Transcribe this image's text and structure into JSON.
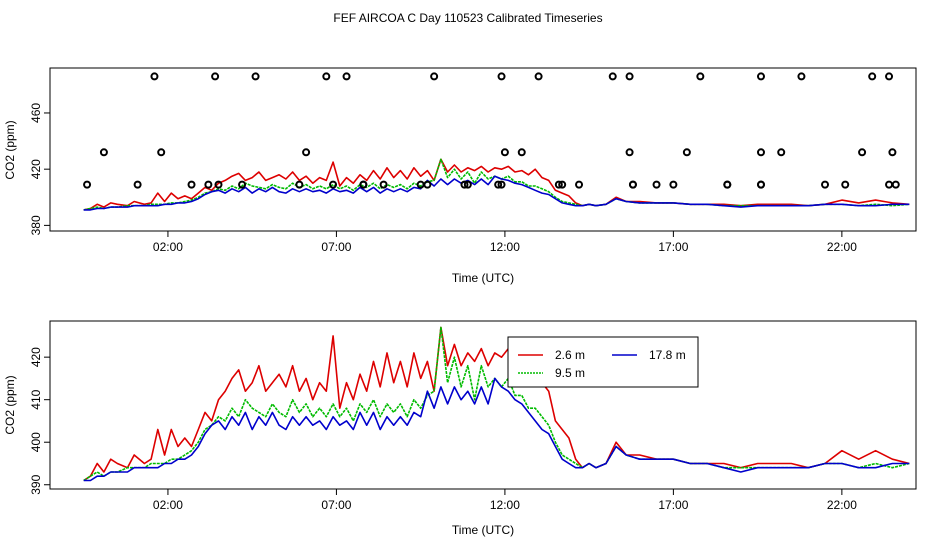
{
  "chart_data": [
    {
      "type": "line",
      "title": "FEF AIRCOA C  Day 110523  Calibrated Timeseries",
      "xlabel": "Time (UTC)",
      "ylabel": "CO2 (ppm)",
      "xlim": [
        -1.5,
        24.2
      ],
      "ylim": [
        376,
        492
      ],
      "xticks": [
        2,
        7,
        12,
        17,
        22
      ],
      "xtick_labels": [
        "02:00",
        "07:00",
        "12:00",
        "17:00",
        "22:00"
      ],
      "yticks": [
        380,
        420,
        460
      ],
      "ytick_labels": [
        "380",
        "420",
        "460"
      ],
      "outliers": {
        "name": "flagged points",
        "x": [
          1.6,
          3.4,
          4.6,
          6.7,
          7.3,
          9.9,
          11.9,
          13.0,
          15.2,
          15.7,
          17.8,
          19.6,
          20.8,
          22.9,
          23.4,
          0.1,
          1.8,
          6.1,
          12.0,
          12.5,
          15.7,
          17.4,
          19.6,
          20.2,
          22.6,
          23.5,
          -0.4,
          3.5,
          5.9,
          7.8,
          9.7,
          10.9,
          11.8,
          13.7,
          14.2,
          15.8,
          17.0,
          18.6,
          19.6,
          22.1,
          23.4,
          1.1,
          2.7,
          3.2,
          4.2,
          6.9,
          7.8,
          8.4,
          9.5,
          10.8,
          11.9,
          13.6,
          15.8,
          16.5,
          18.6,
          19.6,
          21.5,
          23.6
        ],
        "y": [
          486,
          486,
          486,
          486,
          486,
          486,
          486,
          486,
          486,
          486,
          486,
          486,
          486,
          486,
          486,
          432,
          432,
          432,
          432,
          432,
          432,
          432,
          432,
          432,
          432,
          432,
          409,
          409,
          409,
          409,
          409,
          409,
          409,
          409,
          409,
          409,
          409,
          409,
          409,
          409,
          409,
          409,
          409,
          409,
          409,
          409,
          409,
          409,
          409,
          409,
          409,
          409,
          409,
          409,
          409,
          409,
          409,
          409
        ]
      },
      "series": [
        {
          "name": "2.6 m",
          "color": "#dd0000"
        },
        {
          "name": "9.5 m",
          "color": "#00bb00"
        },
        {
          "name": "17.8 m",
          "color": "#0000cc"
        }
      ]
    },
    {
      "type": "line",
      "title": "",
      "xlabel": "Time (UTC)",
      "ylabel": "CO2 (ppm)",
      "xlim": [
        -1.5,
        24.2
      ],
      "ylim": [
        389,
        428.5
      ],
      "xticks": [
        2,
        7,
        12,
        17,
        22
      ],
      "xtick_labels": [
        "02:00",
        "07:00",
        "12:00",
        "17:00",
        "22:00"
      ],
      "yticks": [
        390,
        400,
        410,
        420
      ],
      "ytick_labels": [
        "390",
        "400",
        "410",
        "420"
      ],
      "legend_position": "top-center",
      "series": [
        {
          "name": "2.6 m",
          "color": "#dd0000",
          "x": [
            -0.5,
            -0.3,
            -0.1,
            0.1,
            0.3,
            0.5,
            0.8,
            1.0,
            1.3,
            1.5,
            1.7,
            1.9,
            2.1,
            2.3,
            2.5,
            2.7,
            2.9,
            3.1,
            3.3,
            3.5,
            3.7,
            3.9,
            4.1,
            4.3,
            4.5,
            4.7,
            4.9,
            5.1,
            5.3,
            5.5,
            5.7,
            5.9,
            6.1,
            6.3,
            6.5,
            6.7,
            6.9,
            7.1,
            7.3,
            7.5,
            7.7,
            7.9,
            8.1,
            8.3,
            8.5,
            8.7,
            8.9,
            9.1,
            9.3,
            9.5,
            9.7,
            9.9,
            10.1,
            10.3,
            10.5,
            10.7,
            10.9,
            11.1,
            11.3,
            11.5,
            11.7,
            11.9,
            12.1,
            12.3,
            12.5,
            12.7,
            12.9,
            13.1,
            13.3,
            13.5,
            13.7,
            13.9,
            14.1,
            14.3,
            14.5,
            14.7,
            15.0,
            15.3,
            15.6,
            16.0,
            16.5,
            17.0,
            17.5,
            18.0,
            18.5,
            19.0,
            19.5,
            20.0,
            20.5,
            21.0,
            21.5,
            22.0,
            22.5,
            23.0,
            23.5,
            24.0
          ],
          "y": [
            391,
            392,
            395,
            393,
            396,
            395,
            394,
            397,
            395,
            396,
            403,
            397,
            403,
            399,
            401,
            399,
            403,
            407,
            405,
            410,
            412,
            415,
            417,
            412,
            414,
            418,
            412,
            414,
            416,
            413,
            418,
            412,
            415,
            410,
            414,
            412,
            425,
            408,
            414,
            410,
            416,
            412,
            419,
            413,
            421,
            414,
            419,
            413,
            421,
            415,
            419,
            412,
            427,
            418,
            423,
            418,
            421,
            419,
            422,
            418,
            421,
            420,
            422,
            418,
            419,
            416,
            420,
            414,
            412,
            405,
            403,
            401,
            396,
            394,
            395,
            394,
            395,
            400,
            397,
            397,
            396,
            396,
            395,
            395,
            395,
            394,
            395,
            395,
            395,
            394,
            395,
            398,
            396,
            398,
            396,
            395
          ]
        },
        {
          "name": "9.5 m",
          "color": "#00bb00",
          "x": [
            -0.5,
            -0.3,
            -0.1,
            0.1,
            0.3,
            0.5,
            0.8,
            1.0,
            1.3,
            1.5,
            1.7,
            1.9,
            2.1,
            2.3,
            2.5,
            2.7,
            2.9,
            3.1,
            3.3,
            3.5,
            3.7,
            3.9,
            4.1,
            4.3,
            4.5,
            4.7,
            4.9,
            5.1,
            5.3,
            5.5,
            5.7,
            5.9,
            6.1,
            6.3,
            6.5,
            6.7,
            6.9,
            7.1,
            7.3,
            7.5,
            7.7,
            7.9,
            8.1,
            8.3,
            8.5,
            8.7,
            8.9,
            9.1,
            9.3,
            9.5,
            9.7,
            9.9,
            10.1,
            10.3,
            10.5,
            10.7,
            10.9,
            11.1,
            11.3,
            11.5,
            11.7,
            11.9,
            12.1,
            12.3,
            12.5,
            12.7,
            12.9,
            13.1,
            13.3,
            13.5,
            13.7,
            13.9,
            14.1,
            14.3,
            14.5,
            14.7,
            15.0,
            15.3,
            15.6,
            16.0,
            16.5,
            17.0,
            17.5,
            18.0,
            18.5,
            19.0,
            19.5,
            20.0,
            20.5,
            21.0,
            21.5,
            22.0,
            22.5,
            23.0,
            23.5,
            24.0
          ],
          "y": [
            391,
            392,
            393,
            392,
            393,
            393,
            394,
            394,
            394,
            395,
            395,
            395,
            396,
            396,
            397,
            398,
            400,
            403,
            404,
            406,
            405,
            408,
            406,
            410,
            408,
            407,
            406,
            409,
            407,
            406,
            410,
            407,
            409,
            406,
            408,
            406,
            409,
            406,
            408,
            405,
            409,
            407,
            410,
            406,
            409,
            407,
            409,
            406,
            410,
            408,
            411,
            412,
            427,
            414,
            420,
            413,
            418,
            410,
            418,
            413,
            415,
            413,
            415,
            411,
            411,
            408,
            408,
            406,
            404,
            400,
            397,
            396,
            395,
            394,
            395,
            394,
            395,
            399,
            397,
            396,
            396,
            396,
            395,
            395,
            394,
            394,
            394,
            394,
            394,
            394,
            395,
            395,
            394,
            395,
            394,
            395
          ]
        },
        {
          "name": "17.8 m",
          "color": "#0000cc",
          "x": [
            -0.5,
            -0.3,
            -0.1,
            0.1,
            0.3,
            0.5,
            0.8,
            1.0,
            1.3,
            1.5,
            1.7,
            1.9,
            2.1,
            2.3,
            2.5,
            2.7,
            2.9,
            3.1,
            3.3,
            3.5,
            3.7,
            3.9,
            4.1,
            4.3,
            4.5,
            4.7,
            4.9,
            5.1,
            5.3,
            5.5,
            5.7,
            5.9,
            6.1,
            6.3,
            6.5,
            6.7,
            6.9,
            7.1,
            7.3,
            7.5,
            7.7,
            7.9,
            8.1,
            8.3,
            8.5,
            8.7,
            8.9,
            9.1,
            9.3,
            9.5,
            9.7,
            9.9,
            10.1,
            10.3,
            10.5,
            10.7,
            10.9,
            11.1,
            11.3,
            11.5,
            11.7,
            11.9,
            12.1,
            12.3,
            12.5,
            12.7,
            12.9,
            13.1,
            13.3,
            13.5,
            13.7,
            13.9,
            14.1,
            14.3,
            14.5,
            14.7,
            15.0,
            15.3,
            15.6,
            16.0,
            16.5,
            17.0,
            17.5,
            18.0,
            18.5,
            19.0,
            19.5,
            20.0,
            20.5,
            21.0,
            21.5,
            22.0,
            22.5,
            23.0,
            23.5,
            24.0
          ],
          "y": [
            391,
            391,
            392,
            392,
            393,
            393,
            393,
            394,
            394,
            394,
            394,
            395,
            395,
            396,
            396,
            397,
            399,
            402,
            404,
            405,
            403,
            406,
            404,
            407,
            403,
            406,
            404,
            407,
            404,
            403,
            406,
            404,
            406,
            404,
            405,
            403,
            406,
            404,
            405,
            403,
            407,
            404,
            407,
            403,
            406,
            404,
            406,
            404,
            407,
            406,
            412,
            408,
            413,
            409,
            413,
            410,
            412,
            409,
            413,
            409,
            415,
            413,
            412,
            410,
            409,
            407,
            405,
            403,
            402,
            399,
            396,
            395,
            394,
            394,
            395,
            394,
            395,
            399,
            397,
            396,
            396,
            396,
            395,
            395,
            394,
            393,
            394,
            394,
            394,
            394,
            395,
            395,
            394,
            394,
            395,
            395
          ]
        }
      ]
    }
  ]
}
